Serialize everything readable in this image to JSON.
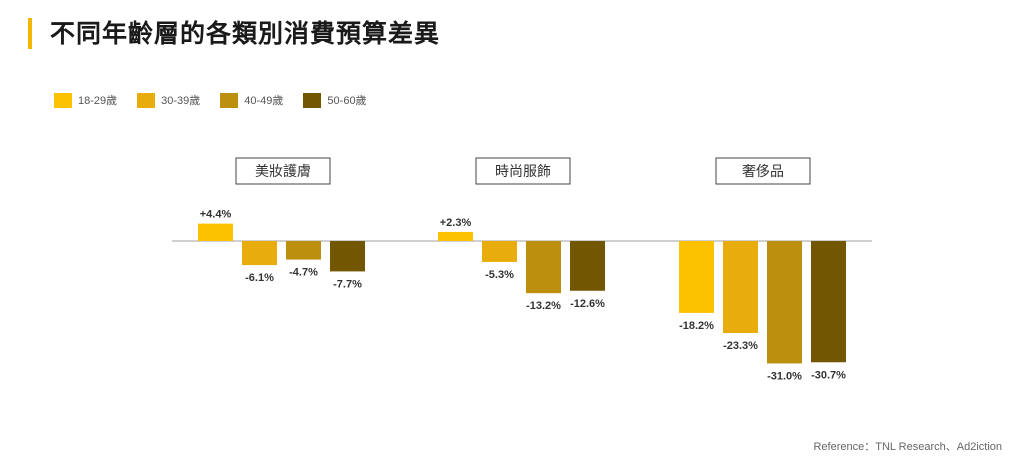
{
  "title": "不同年齡層的各類別消費預算差異",
  "reference": "Reference：TNL Research、Ad2iction",
  "chart_data": {
    "type": "bar",
    "title": "不同年齡層的各類別消費預算差異",
    "categories": [
      "美妝護膚",
      "時尚服飾",
      "奢侈品"
    ],
    "series": [
      {
        "name": "18-29歲",
        "color": "#fcc200",
        "values": [
          4.4,
          2.3,
          -18.2
        ],
        "labels": [
          "+4.4%",
          "+2.3%",
          "-18.2%"
        ]
      },
      {
        "name": "30-39歲",
        "color": "#e8ad0c",
        "values": [
          -6.1,
          -5.3,
          -23.3
        ],
        "labels": [
          "-6.1%",
          "-5.3%",
          "-23.3%"
        ]
      },
      {
        "name": "40-49歲",
        "color": "#bd8f0f",
        "values": [
          -4.7,
          -13.2,
          -31.0
        ],
        "labels": [
          "-4.7%",
          "-13.2%",
          "-31.0%"
        ]
      },
      {
        "name": "50-60歲",
        "color": "#735700",
        "values": [
          -7.7,
          -12.6,
          -30.7
        ],
        "labels": [
          "-7.7%",
          "-12.6%",
          "-30.7%"
        ]
      }
    ],
    "unit": "%",
    "grid": false,
    "legend_position": "top-left"
  }
}
